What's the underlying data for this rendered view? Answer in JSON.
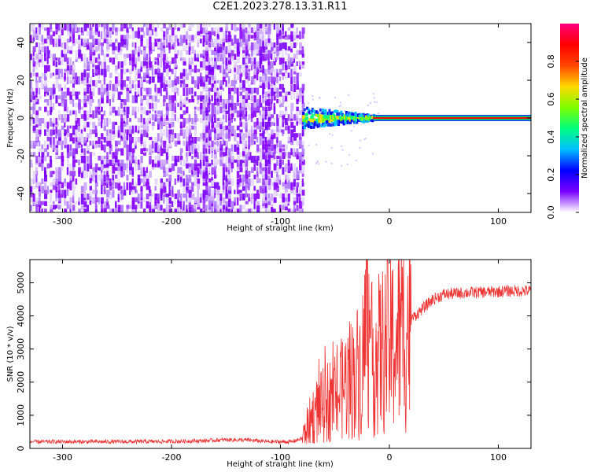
{
  "title": "C2E1.2023.278.13.31.R11",
  "chart_data": [
    {
      "type": "heatmap",
      "xlabel": "Height of straight line (km)",
      "ylabel": "Frequency (Hz)",
      "xlim": [
        -330,
        130
      ],
      "ylim": [
        -50,
        50
      ],
      "xticks": [
        -300,
        -200,
        -100,
        0,
        100
      ],
      "yticks": [
        -40,
        -20,
        0,
        20,
        40
      ],
      "noise_region_x": [
        -330,
        -80
      ],
      "transition_region_x": [
        -80,
        -15
      ],
      "carrier_line": {
        "x": [
          -15,
          130
        ],
        "y": 0
      },
      "colorbar": {
        "label": "Normalized spectral amplitude",
        "range": [
          0,
          1
        ],
        "ticks": [
          "0.0",
          "0.2",
          "0.4",
          "0.6",
          "0.8"
        ],
        "colors": [
          "#ffffff",
          "#7a00ff",
          "#0000ff",
          "#00bfff",
          "#00ff7f",
          "#7fff00",
          "#ffd700",
          "#ff4500",
          "#ff0000",
          "#ff007f"
        ]
      }
    },
    {
      "type": "line",
      "xlabel": "Height of straight line (km)",
      "ylabel": "SNR (10 * v/v)",
      "xlim": [
        -330,
        130
      ],
      "ylim": [
        0,
        5700
      ],
      "xticks": [
        -300,
        -200,
        -100,
        0,
        100
      ],
      "yticks": [
        0,
        1000,
        2000,
        3000,
        4000,
        5000
      ],
      "color": "#ee3333",
      "series": [
        {
          "x": [
            -330,
            -300,
            -250,
            -200,
            -170,
            -150,
            -130,
            -110,
            -90,
            -80,
            -75,
            -70,
            -65,
            -60,
            -55,
            -50,
            -45,
            -40,
            -35,
            -30,
            -25,
            -22,
            -20,
            -18,
            -15,
            -10,
            -5,
            0,
            5,
            10,
            15,
            20,
            30,
            40,
            50,
            70,
            90,
            110,
            130
          ],
          "y": [
            200,
            200,
            200,
            210,
            230,
            260,
            250,
            200,
            200,
            300,
            700,
            1000,
            1200,
            1300,
            1500,
            1500,
            1700,
            2000,
            2100,
            2300,
            2500,
            3500,
            5400,
            2600,
            2700,
            2800,
            3000,
            3100,
            3200,
            3400,
            3600,
            3900,
            4200,
            4500,
            4650,
            4700,
            4720,
            4750,
            4760
          ]
        }
      ]
    }
  ]
}
